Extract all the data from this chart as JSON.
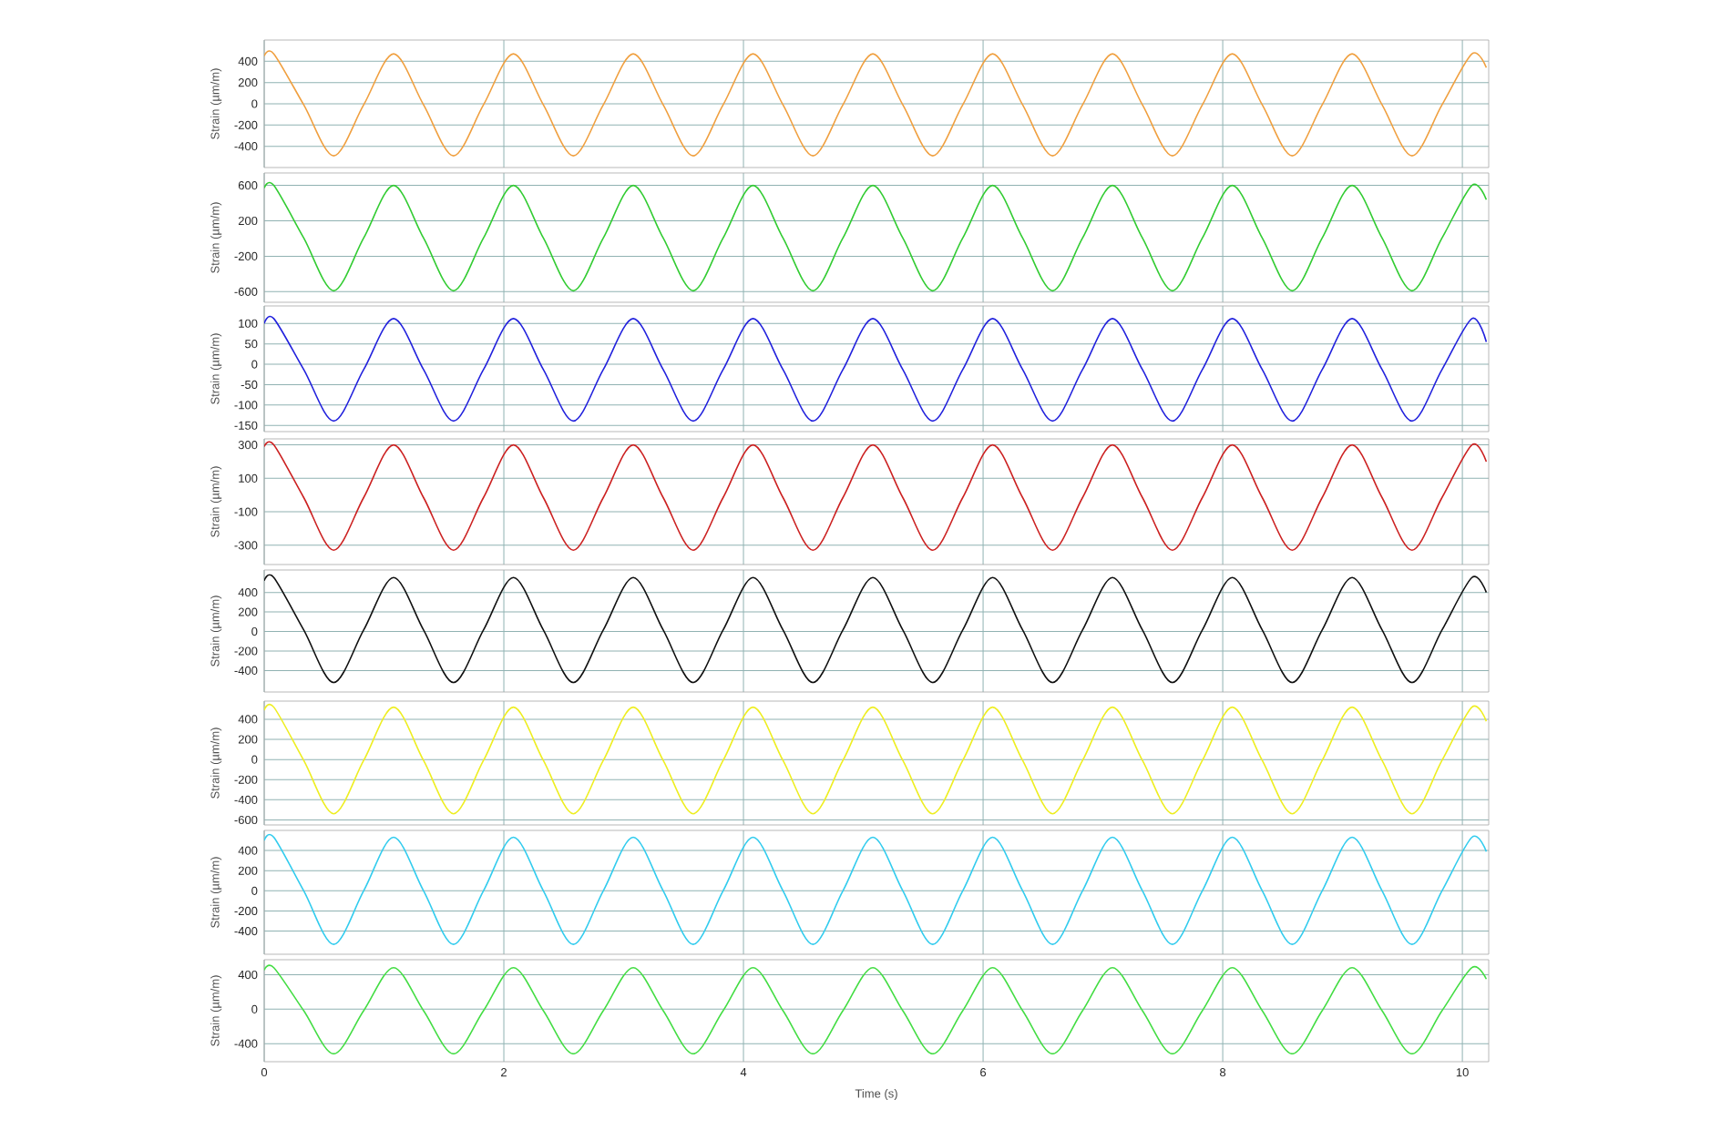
{
  "chart_data": [
    {
      "type": "line",
      "ylabel": "Strain (µm/m)",
      "color": "#f0a040",
      "grid": true,
      "tick_labels": "y",
      "xlim": [
        0,
        10.22
      ],
      "xticks": [
        0,
        2,
        4,
        6,
        8,
        10
      ],
      "ylim": [
        -600,
        600
      ],
      "yticks": [
        -400,
        -200,
        0,
        200,
        400
      ],
      "x": [
        0,
        0.08,
        0.33,
        0.58,
        0.83,
        1.08,
        1.33,
        1.58,
        1.83,
        2.08,
        2.33,
        2.58,
        2.83,
        3.08,
        3.33,
        3.58,
        3.83,
        4.08,
        4.33,
        4.58,
        4.83,
        5.08,
        5.33,
        5.58,
        5.83,
        6.08,
        6.33,
        6.58,
        6.83,
        7.08,
        7.33,
        7.58,
        7.83,
        8.08,
        8.33,
        8.58,
        8.83,
        9.08,
        9.33,
        9.58,
        9.83,
        10.08,
        10.2
      ],
      "values": [
        450,
        470,
        -10,
        -490,
        -10,
        470,
        -10,
        -490,
        -10,
        470,
        -10,
        -490,
        -10,
        470,
        -10,
        -490,
        -10,
        470,
        -10,
        -490,
        -10,
        470,
        -10,
        -490,
        -10,
        470,
        -10,
        -490,
        -10,
        470,
        -10,
        -490,
        -10,
        470,
        -10,
        -490,
        -10,
        470,
        -10,
        -490,
        -10,
        470,
        340
      ]
    },
    {
      "type": "line",
      "ylabel": "Strain (µm/m)",
      "color": "#33cc33",
      "grid": true,
      "tick_labels": "y",
      "xlim": [
        0,
        10.22
      ],
      "xticks": [
        0,
        2,
        4,
        6,
        8,
        10
      ],
      "ylim": [
        -720,
        740
      ],
      "yticks": [
        -600,
        -200,
        200,
        600
      ],
      "x": [
        0,
        0.08,
        0.33,
        0.58,
        0.83,
        1.08,
        1.33,
        1.58,
        1.83,
        2.08,
        2.33,
        2.58,
        2.83,
        3.08,
        3.33,
        3.58,
        3.83,
        4.08,
        4.33,
        4.58,
        4.83,
        5.08,
        5.33,
        5.58,
        5.83,
        6.08,
        6.33,
        6.58,
        6.83,
        7.08,
        7.33,
        7.58,
        7.83,
        8.08,
        8.33,
        8.58,
        8.83,
        9.08,
        9.33,
        9.58,
        9.83,
        10.08,
        10.2
      ],
      "values": [
        570,
        600,
        5,
        -590,
        5,
        600,
        5,
        -590,
        5,
        600,
        5,
        -590,
        5,
        600,
        5,
        -590,
        5,
        600,
        5,
        -590,
        5,
        600,
        5,
        -590,
        5,
        600,
        5,
        -590,
        5,
        600,
        5,
        -590,
        5,
        600,
        5,
        -590,
        5,
        600,
        5,
        -590,
        5,
        600,
        440
      ]
    },
    {
      "type": "line",
      "ylabel": "Strain (µm/m)",
      "color": "#2222dd",
      "grid": true,
      "tick_labels": "y",
      "xlim": [
        0,
        10.22
      ],
      "xticks": [
        0,
        2,
        4,
        6,
        8,
        10
      ],
      "ylim": [
        -165,
        143
      ],
      "yticks": [
        -150,
        -100,
        -50,
        0,
        50,
        100
      ],
      "x": [
        0,
        0.08,
        0.33,
        0.58,
        0.83,
        1.08,
        1.33,
        1.58,
        1.83,
        2.08,
        2.33,
        2.58,
        2.83,
        3.08,
        3.33,
        3.58,
        3.83,
        4.08,
        4.33,
        4.58,
        4.83,
        5.08,
        5.33,
        5.58,
        5.83,
        6.08,
        6.33,
        6.58,
        6.83,
        7.08,
        7.33,
        7.58,
        7.83,
        8.08,
        8.33,
        8.58,
        8.83,
        9.08,
        9.33,
        9.58,
        9.83,
        10.08,
        10.2
      ],
      "values": [
        100,
        112,
        -13,
        -139,
        -13,
        112,
        -13,
        -139,
        -13,
        112,
        -13,
        -139,
        -13,
        112,
        -13,
        -139,
        -13,
        112,
        -13,
        -139,
        -13,
        112,
        -13,
        -139,
        -13,
        112,
        -13,
        -139,
        -13,
        112,
        -13,
        -139,
        -13,
        112,
        -13,
        -139,
        -13,
        112,
        -13,
        -139,
        -13,
        112,
        55
      ]
    },
    {
      "type": "line",
      "ylabel": "Strain (µm/m)",
      "color": "#cc2222",
      "grid": true,
      "tick_labels": "y",
      "xlim": [
        0,
        10.22
      ],
      "xticks": [
        0,
        2,
        4,
        6,
        8,
        10
      ],
      "ylim": [
        -415,
        336
      ],
      "yticks": [
        -300,
        -100,
        100,
        300
      ],
      "x": [
        0,
        0.08,
        0.33,
        0.58,
        0.83,
        1.08,
        1.33,
        1.58,
        1.83,
        2.08,
        2.33,
        2.58,
        2.83,
        3.08,
        3.33,
        3.58,
        3.83,
        4.08,
        4.33,
        4.58,
        4.83,
        5.08,
        5.33,
        5.58,
        5.83,
        6.08,
        6.33,
        6.58,
        6.83,
        7.08,
        7.33,
        7.58,
        7.83,
        8.08,
        8.33,
        8.58,
        8.83,
        9.08,
        9.33,
        9.58,
        9.83,
        10.08,
        10.2
      ],
      "values": [
        290,
        300,
        -15,
        -329,
        -15,
        300,
        -15,
        -329,
        -15,
        300,
        -15,
        -329,
        -15,
        300,
        -15,
        -329,
        -15,
        300,
        -15,
        -329,
        -15,
        300,
        -15,
        -329,
        -15,
        300,
        -15,
        -329,
        -15,
        300,
        -15,
        -329,
        -15,
        300,
        -15,
        -329,
        -15,
        300,
        -15,
        -329,
        -15,
        300,
        200
      ]
    },
    {
      "type": "line",
      "ylabel": "Strain (µm/m)",
      "color": "#111111",
      "grid": true,
      "tick_labels": "y",
      "xlim": [
        0,
        10.22
      ],
      "xticks": [
        0,
        2,
        4,
        6,
        8,
        10
      ],
      "ylim": [
        -620,
        630
      ],
      "yticks": [
        -400,
        -200,
        0,
        200,
        400
      ],
      "x": [
        0,
        0.08,
        0.33,
        0.58,
        0.83,
        1.08,
        1.33,
        1.58,
        1.83,
        2.08,
        2.33,
        2.58,
        2.83,
        3.08,
        3.33,
        3.58,
        3.83,
        4.08,
        4.33,
        4.58,
        4.83,
        5.08,
        5.33,
        5.58,
        5.83,
        6.08,
        6.33,
        6.58,
        6.83,
        7.08,
        7.33,
        7.58,
        7.83,
        8.08,
        8.33,
        8.58,
        8.83,
        9.08,
        9.33,
        9.58,
        9.83,
        10.08,
        10.2
      ],
      "values": [
        520,
        553,
        15,
        -523,
        15,
        553,
        15,
        -523,
        15,
        553,
        15,
        -523,
        15,
        553,
        15,
        -523,
        15,
        553,
        15,
        -523,
        15,
        553,
        15,
        -523,
        15,
        553,
        15,
        -523,
        15,
        553,
        15,
        -523,
        15,
        553,
        15,
        -523,
        15,
        553,
        15,
        -523,
        15,
        553,
        400
      ]
    },
    {
      "type": "line",
      "ylabel": "Strain (µm/m)",
      "color": "#eeee22",
      "grid": true,
      "tick_labels": "y",
      "xlim": [
        0,
        10.22
      ],
      "xticks": [
        0,
        2,
        4,
        6,
        8,
        10
      ],
      "ylim": [
        -650,
        580
      ],
      "yticks": [
        -600,
        -400,
        -200,
        0,
        200,
        400
      ],
      "x": [
        0,
        0.08,
        0.33,
        0.58,
        0.83,
        1.08,
        1.33,
        1.58,
        1.83,
        2.08,
        2.33,
        2.58,
        2.83,
        3.08,
        3.33,
        3.58,
        3.83,
        4.08,
        4.33,
        4.58,
        4.83,
        5.08,
        5.33,
        5.58,
        5.83,
        6.08,
        6.33,
        6.58,
        6.83,
        7.08,
        7.33,
        7.58,
        7.83,
        8.08,
        8.33,
        8.58,
        8.83,
        9.08,
        9.33,
        9.58,
        9.83,
        10.08,
        10.2
      ],
      "values": [
        490,
        520,
        -10,
        -539,
        -10,
        520,
        -10,
        -539,
        -10,
        520,
        -10,
        -539,
        -10,
        520,
        -10,
        -539,
        -10,
        520,
        -10,
        -539,
        -10,
        520,
        -10,
        -539,
        -10,
        520,
        -10,
        -539,
        -10,
        520,
        -10,
        -539,
        -10,
        520,
        -10,
        -539,
        -10,
        520,
        -10,
        -539,
        -10,
        520,
        380
      ]
    },
    {
      "type": "line",
      "ylabel": "Strain (µm/m)",
      "color": "#33ccee",
      "grid": true,
      "tick_labels": "y",
      "xlim": [
        0,
        10.22
      ],
      "xticks": [
        0,
        2,
        4,
        6,
        8,
        10
      ],
      "ylim": [
        -630,
        600
      ],
      "yticks": [
        -400,
        -200,
        0,
        200,
        400
      ],
      "x": [
        0,
        0.08,
        0.33,
        0.58,
        0.83,
        1.08,
        1.33,
        1.58,
        1.83,
        2.08,
        2.33,
        2.58,
        2.83,
        3.08,
        3.33,
        3.58,
        3.83,
        4.08,
        4.33,
        4.58,
        4.83,
        5.08,
        5.33,
        5.58,
        5.83,
        6.08,
        6.33,
        6.58,
        6.83,
        7.08,
        7.33,
        7.58,
        7.83,
        8.08,
        8.33,
        8.58,
        8.83,
        9.08,
        9.33,
        9.58,
        9.83,
        10.08,
        10.2
      ],
      "values": [
        500,
        532,
        0,
        -532,
        0,
        532,
        0,
        -532,
        0,
        532,
        0,
        -532,
        0,
        532,
        0,
        -532,
        0,
        532,
        0,
        -532,
        0,
        532,
        0,
        -532,
        0,
        532,
        0,
        -532,
        0,
        532,
        0,
        -532,
        0,
        532,
        0,
        -532,
        0,
        532,
        0,
        -532,
        0,
        532,
        390
      ]
    },
    {
      "type": "line",
      "ylabel": "Strain (µm/m)",
      "xlabel": "Time (s)",
      "color": "#44dd44",
      "grid": true,
      "xlim": [
        0,
        10.22
      ],
      "xticks": [
        0,
        2,
        4,
        6,
        8,
        10
      ],
      "ylim": [
        -610,
        575
      ],
      "yticks": [
        -400,
        0,
        400
      ],
      "x": [
        0,
        0.08,
        0.33,
        0.58,
        0.83,
        1.08,
        1.33,
        1.58,
        1.83,
        2.08,
        2.33,
        2.58,
        2.83,
        3.08,
        3.33,
        3.58,
        3.83,
        4.08,
        4.33,
        4.58,
        4.83,
        5.08,
        5.33,
        5.58,
        5.83,
        6.08,
        6.33,
        6.58,
        6.83,
        7.08,
        7.33,
        7.58,
        7.83,
        8.08,
        8.33,
        8.58,
        8.83,
        9.08,
        9.33,
        9.58,
        9.83,
        10.08,
        10.2
      ],
      "values": [
        455,
        483,
        -18,
        -519,
        -18,
        483,
        -18,
        -519,
        -18,
        483,
        -18,
        -519,
        -18,
        483,
        -18,
        -519,
        -18,
        483,
        -18,
        -519,
        -18,
        483,
        -18,
        -519,
        -18,
        483,
        -18,
        -519,
        -18,
        483,
        -18,
        -519,
        -18,
        483,
        -18,
        -519,
        -18,
        483,
        -18,
        -519,
        -18,
        483,
        350
      ]
    }
  ]
}
